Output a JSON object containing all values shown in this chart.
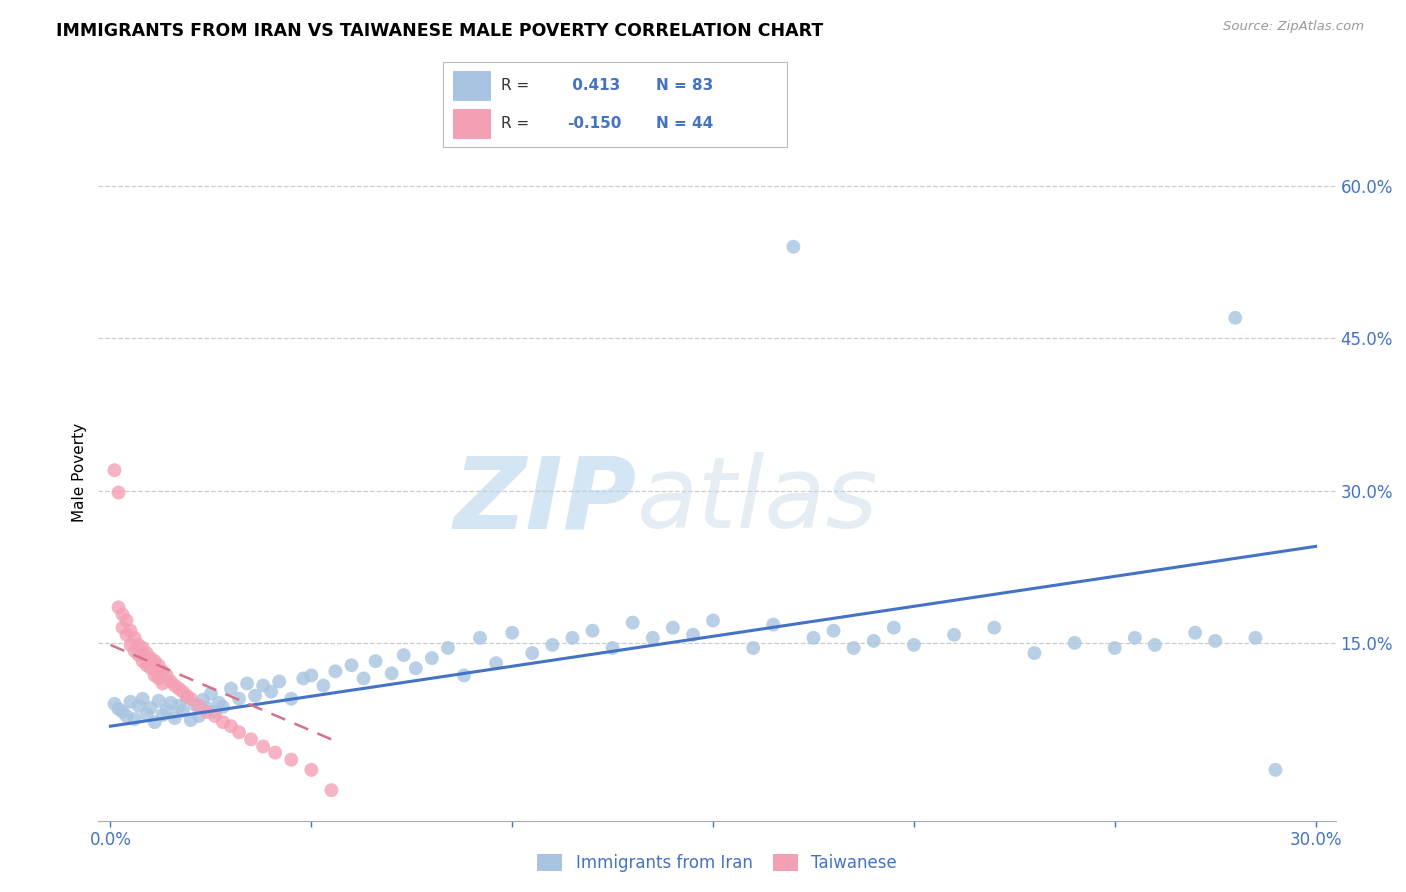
{
  "title": "IMMIGRANTS FROM IRAN VS TAIWANESE MALE POVERTY CORRELATION CHART",
  "source": "Source: ZipAtlas.com",
  "ylabel": "Male Poverty",
  "legend_label1": "Immigrants from Iran",
  "legend_label2": "Taiwanese",
  "r1": 0.413,
  "n1": 83,
  "r2": -0.15,
  "n2": 44,
  "color_iran": "#a8c4e0",
  "color_taiwan": "#f4a0b4",
  "color_iran_line": "#4472c4",
  "color_taiwan_line": "#d4708a",
  "xlim": [
    -0.003,
    0.305
  ],
  "ylim": [
    -0.025,
    0.66
  ],
  "ytick_vals": [
    0.15,
    0.3,
    0.45,
    0.6
  ],
  "ytick_labels": [
    "15.0%",
    "30.0%",
    "45.0%",
    "60.0%"
  ],
  "xtick_vals": [
    0.0,
    0.05,
    0.1,
    0.15,
    0.2,
    0.25,
    0.3
  ],
  "xtick_labels": [
    "0.0%",
    "",
    "",
    "",
    "",
    "",
    "30.0%"
  ],
  "iran_line_x": [
    0.0,
    0.3
  ],
  "iran_line_y": [
    0.068,
    0.245
  ],
  "taiwan_line_x": [
    0.0,
    0.055
  ],
  "taiwan_line_y": [
    0.148,
    0.055
  ],
  "watermark_zip": "ZIP",
  "watermark_atlas": "atlas",
  "background_color": "#ffffff",
  "grid_color": "#cccccc",
  "iran_x": [
    0.001,
    0.002,
    0.003,
    0.004,
    0.005,
    0.006,
    0.007,
    0.008,
    0.009,
    0.01,
    0.011,
    0.012,
    0.013,
    0.014,
    0.015,
    0.016,
    0.017,
    0.018,
    0.019,
    0.02,
    0.021,
    0.022,
    0.023,
    0.024,
    0.025,
    0.026,
    0.027,
    0.028,
    0.03,
    0.032,
    0.034,
    0.036,
    0.038,
    0.04,
    0.042,
    0.045,
    0.048,
    0.05,
    0.053,
    0.056,
    0.06,
    0.063,
    0.066,
    0.07,
    0.073,
    0.076,
    0.08,
    0.084,
    0.088,
    0.092,
    0.096,
    0.1,
    0.105,
    0.11,
    0.115,
    0.12,
    0.125,
    0.13,
    0.135,
    0.14,
    0.145,
    0.15,
    0.16,
    0.165,
    0.17,
    0.175,
    0.18,
    0.185,
    0.19,
    0.195,
    0.2,
    0.21,
    0.22,
    0.23,
    0.24,
    0.25,
    0.255,
    0.26,
    0.27,
    0.275,
    0.28,
    0.285,
    0.29
  ],
  "iran_y": [
    0.09,
    0.085,
    0.082,
    0.078,
    0.092,
    0.075,
    0.088,
    0.095,
    0.08,
    0.086,
    0.072,
    0.093,
    0.079,
    0.084,
    0.091,
    0.076,
    0.088,
    0.083,
    0.096,
    0.074,
    0.089,
    0.078,
    0.094,
    0.086,
    0.1,
    0.082,
    0.091,
    0.087,
    0.105,
    0.095,
    0.11,
    0.098,
    0.108,
    0.102,
    0.112,
    0.095,
    0.115,
    0.118,
    0.108,
    0.122,
    0.128,
    0.115,
    0.132,
    0.12,
    0.138,
    0.125,
    0.135,
    0.145,
    0.118,
    0.155,
    0.13,
    0.16,
    0.14,
    0.148,
    0.155,
    0.162,
    0.145,
    0.17,
    0.155,
    0.165,
    0.158,
    0.172,
    0.145,
    0.168,
    0.54,
    0.155,
    0.162,
    0.145,
    0.152,
    0.165,
    0.148,
    0.158,
    0.165,
    0.14,
    0.15,
    0.145,
    0.155,
    0.148,
    0.16,
    0.152,
    0.47,
    0.155,
    0.025
  ],
  "taiwan_x": [
    0.001,
    0.002,
    0.002,
    0.003,
    0.003,
    0.004,
    0.004,
    0.005,
    0.005,
    0.006,
    0.006,
    0.007,
    0.007,
    0.008,
    0.008,
    0.009,
    0.009,
    0.01,
    0.01,
    0.011,
    0.011,
    0.012,
    0.012,
    0.013,
    0.013,
    0.014,
    0.015,
    0.016,
    0.017,
    0.018,
    0.019,
    0.02,
    0.022,
    0.024,
    0.026,
    0.028,
    0.03,
    0.032,
    0.035,
    0.038,
    0.041,
    0.045,
    0.05,
    0.055
  ],
  "taiwan_y": [
    0.32,
    0.298,
    0.185,
    0.178,
    0.165,
    0.172,
    0.158,
    0.162,
    0.148,
    0.155,
    0.142,
    0.148,
    0.138,
    0.145,
    0.132,
    0.14,
    0.128,
    0.135,
    0.125,
    0.132,
    0.118,
    0.128,
    0.115,
    0.122,
    0.11,
    0.118,
    0.112,
    0.108,
    0.105,
    0.102,
    0.098,
    0.095,
    0.088,
    0.082,
    0.078,
    0.072,
    0.068,
    0.062,
    0.055,
    0.048,
    0.042,
    0.035,
    0.025,
    0.005
  ]
}
